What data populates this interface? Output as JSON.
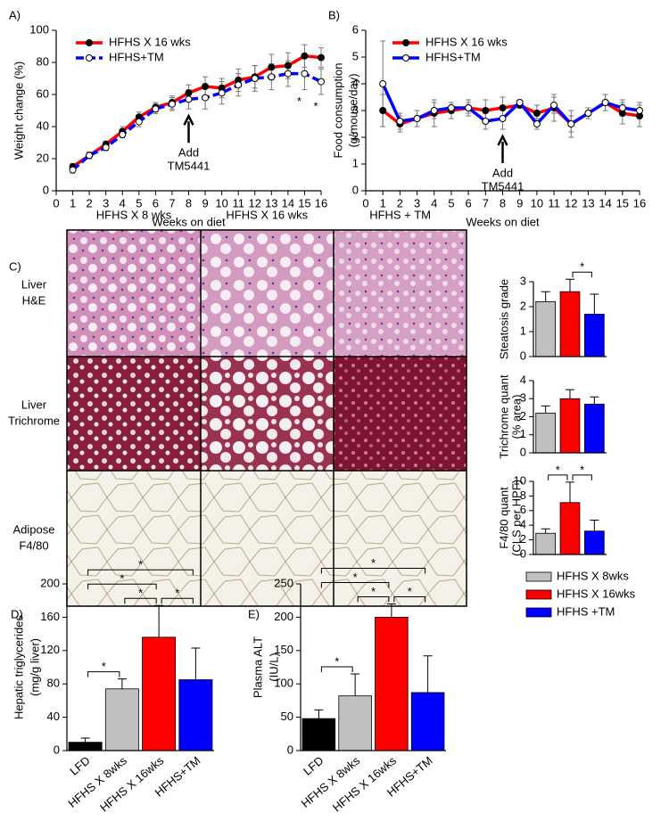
{
  "chart_data": [
    {
      "type": "line",
      "panel_label": "A)",
      "xlabel": "Weeks on diet",
      "ylabel": [
        "Weight change (%)"
      ],
      "x": [
        1,
        2,
        3,
        4,
        5,
        6,
        7,
        8,
        9,
        10,
        11,
        12,
        13,
        14,
        15,
        16
      ],
      "series": [
        {
          "name": "HFHS X 16 wks",
          "color": "#ff0000",
          "marker_color": "#000000",
          "line_style": "solid",
          "values": [
            15,
            22,
            29,
            37,
            46,
            52,
            55,
            61,
            65,
            64,
            69,
            71,
            77,
            78,
            84,
            83
          ],
          "errors": [
            2,
            2,
            2,
            3,
            3,
            3,
            4,
            5,
            6,
            6,
            7,
            7,
            8,
            8,
            7,
            6
          ]
        },
        {
          "name": "HFHS+TM",
          "color": "#0000ff",
          "marker_color": "#ffffff",
          "line_style": "dashed",
          "values": [
            13,
            22,
            27,
            35,
            43,
            51,
            54,
            57,
            58,
            61,
            66,
            70,
            71,
            73,
            73,
            68
          ],
          "errors": [
            2,
            2,
            2,
            2,
            3,
            3,
            4,
            6,
            7,
            7,
            7,
            8,
            8,
            8,
            10,
            8
          ]
        }
      ],
      "xlim": [
        0,
        16
      ],
      "xticks": [
        0,
        1,
        2,
        3,
        4,
        5,
        6,
        7,
        8,
        9,
        10,
        11,
        12,
        13,
        14,
        15,
        16
      ],
      "ylim": [
        0,
        100
      ],
      "yticks": [
        0,
        20,
        40,
        60,
        80,
        100
      ],
      "annotation": {
        "lines": [
          "Add",
          "TM5441"
        ],
        "x": 8
      },
      "significance": [
        {
          "x": 15,
          "label": "*"
        },
        {
          "x": 16,
          "label": "*"
        }
      ]
    },
    {
      "type": "line",
      "panel_label": "B)",
      "xlabel": "Weeks on diet",
      "ylabel": [
        "Food consumption",
        "(g/mouse/day)"
      ],
      "x": [
        1,
        2,
        3,
        4,
        5,
        6,
        7,
        8,
        9,
        10,
        11,
        12,
        13,
        14,
        15,
        16
      ],
      "series": [
        {
          "name": "HFHS X 16 wks",
          "color": "#ff0000",
          "marker_color": "#000000",
          "line_style": "solid",
          "values": [
            3.0,
            2.5,
            2.7,
            2.9,
            3.0,
            3.1,
            3.0,
            3.1,
            3.2,
            2.9,
            3.1,
            2.5,
            2.9,
            3.3,
            2.9,
            2.8
          ],
          "errors": [
            0.6,
            0.3,
            0.3,
            0.5,
            0.3,
            0.3,
            0.4,
            0.4,
            0.1,
            0.3,
            0.5,
            0.5,
            0.2,
            0.3,
            0.4,
            0.4
          ]
        },
        {
          "name": "HFHS+TM",
          "color": "#0000ff",
          "marker_color": "#ffffff",
          "line_style": "solid",
          "values": [
            4.0,
            2.6,
            2.7,
            3.0,
            3.1,
            3.1,
            2.6,
            2.7,
            3.3,
            2.5,
            3.2,
            2.5,
            2.9,
            3.3,
            3.1,
            3.0
          ],
          "errors": [
            1.6,
            0.3,
            0.3,
            0.3,
            0.2,
            0.2,
            0.3,
            0.4,
            0.1,
            0.2,
            0.3,
            0.3,
            0.2,
            0.3,
            0.3,
            0.3
          ]
        }
      ],
      "xlim": [
        0,
        16
      ],
      "xticks": [
        0,
        1,
        2,
        3,
        4,
        5,
        6,
        7,
        8,
        9,
        10,
        11,
        12,
        13,
        14,
        15,
        16
      ],
      "ylim": [
        0,
        6
      ],
      "yticks": [
        0,
        1,
        2,
        3,
        4,
        5,
        6
      ],
      "annotation": {
        "lines": [
          "Add",
          "TM5441"
        ],
        "x": 8
      }
    },
    {
      "type": "bar",
      "ylabel": [
        "Steatosis grade"
      ],
      "values": [
        2.2,
        2.6,
        1.7
      ],
      "errors": [
        0.4,
        0.5,
        0.8
      ],
      "colors": [
        "#c0c0c0",
        "#ff0000",
        "#0000ff"
      ],
      "ylim": [
        0,
        3
      ],
      "yticks": [
        0,
        1,
        2,
        3
      ],
      "significance": [
        {
          "between": [
            1,
            2
          ],
          "label": "*"
        }
      ]
    },
    {
      "type": "bar",
      "ylabel": [
        "Trichrome quant",
        "(% area)"
      ],
      "values": [
        2.2,
        3.0,
        2.7
      ],
      "errors": [
        0.4,
        0.5,
        0.4
      ],
      "colors": [
        "#c0c0c0",
        "#ff0000",
        "#0000ff"
      ],
      "ylim": [
        0,
        4
      ],
      "yticks": [
        0,
        1,
        2,
        3,
        4
      ]
    },
    {
      "type": "bar",
      "ylabel": [
        "F4/80 quant",
        "(CLS per HPF)"
      ],
      "values": [
        2.9,
        7.1,
        3.2
      ],
      "errors": [
        0.6,
        2.8,
        1.5
      ],
      "colors": [
        "#c0c0c0",
        "#ff0000",
        "#0000ff"
      ],
      "ylim": [
        0,
        10
      ],
      "yticks": [
        0,
        2,
        4,
        6,
        8,
        10
      ],
      "significance": [
        {
          "between": [
            0,
            1
          ],
          "label": "*"
        },
        {
          "between": [
            1,
            2
          ],
          "label": "*"
        }
      ]
    },
    {
      "type": "bar",
      "panel_label": "D)",
      "ylabel": [
        "Hepatic triglycerides",
        "(mg/g liver)"
      ],
      "categories": [
        "LFD",
        "HFHS X 8wks",
        "HFHS X 16wks",
        "HFHS+TM"
      ],
      "values": [
        10,
        74,
        136,
        85
      ],
      "errors": [
        5,
        12,
        38,
        38
      ],
      "colors": [
        "#000000",
        "#c0c0c0",
        "#ff0000",
        "#0000ff"
      ],
      "ylim": [
        0,
        200
      ],
      "yticks": [
        0,
        40,
        80,
        120,
        160,
        200
      ],
      "significance": [
        {
          "between": [
            0,
            1
          ],
          "label": "*"
        },
        {
          "between": [
            1,
            2
          ],
          "label": "*"
        },
        {
          "between": [
            2,
            3
          ],
          "label": "*"
        },
        {
          "between": [
            0,
            2
          ],
          "label": "*"
        },
        {
          "between": [
            0,
            3
          ],
          "label": "*"
        }
      ]
    },
    {
      "type": "bar",
      "panel_label": "E)",
      "ylabel": [
        "Plasma ALT",
        "(IU/L)"
      ],
      "categories": [
        "LFD",
        "HFHS X 8wks",
        "HFHS X 16wks",
        "HFHS+TM"
      ],
      "values": [
        48,
        82,
        200,
        87
      ],
      "errors": [
        13,
        33,
        20,
        55
      ],
      "colors": [
        "#000000",
        "#c0c0c0",
        "#ff0000",
        "#0000ff"
      ],
      "ylim": [
        0,
        250
      ],
      "yticks": [
        0,
        50,
        100,
        150,
        200,
        250
      ],
      "significance": [
        {
          "between": [
            0,
            1
          ],
          "label": "*"
        },
        {
          "between": [
            1,
            2
          ],
          "label": "*"
        },
        {
          "between": [
            2,
            3
          ],
          "label": "*"
        },
        {
          "between": [
            0,
            2
          ],
          "label": "*"
        },
        {
          "between": [
            0,
            3
          ],
          "label": "*"
        }
      ]
    }
  ],
  "panel_c": {
    "panel_label": "C)",
    "column_titles": [
      "HFHS X 8 wks",
      "HFHS X 16 wks",
      "HFHS + TM"
    ],
    "row_labels": [
      [
        "Liver",
        "H&E"
      ],
      [
        "Liver",
        "Trichrome"
      ],
      [
        "Adipose",
        "F4/80"
      ]
    ],
    "legend": [
      {
        "name": "HFHS X 8wks",
        "color": "#c0c0c0"
      },
      {
        "name": "HFHS X 16wks",
        "color": "#ff0000"
      },
      {
        "name": "HFHS +TM",
        "color": "#0000ff"
      }
    ]
  }
}
